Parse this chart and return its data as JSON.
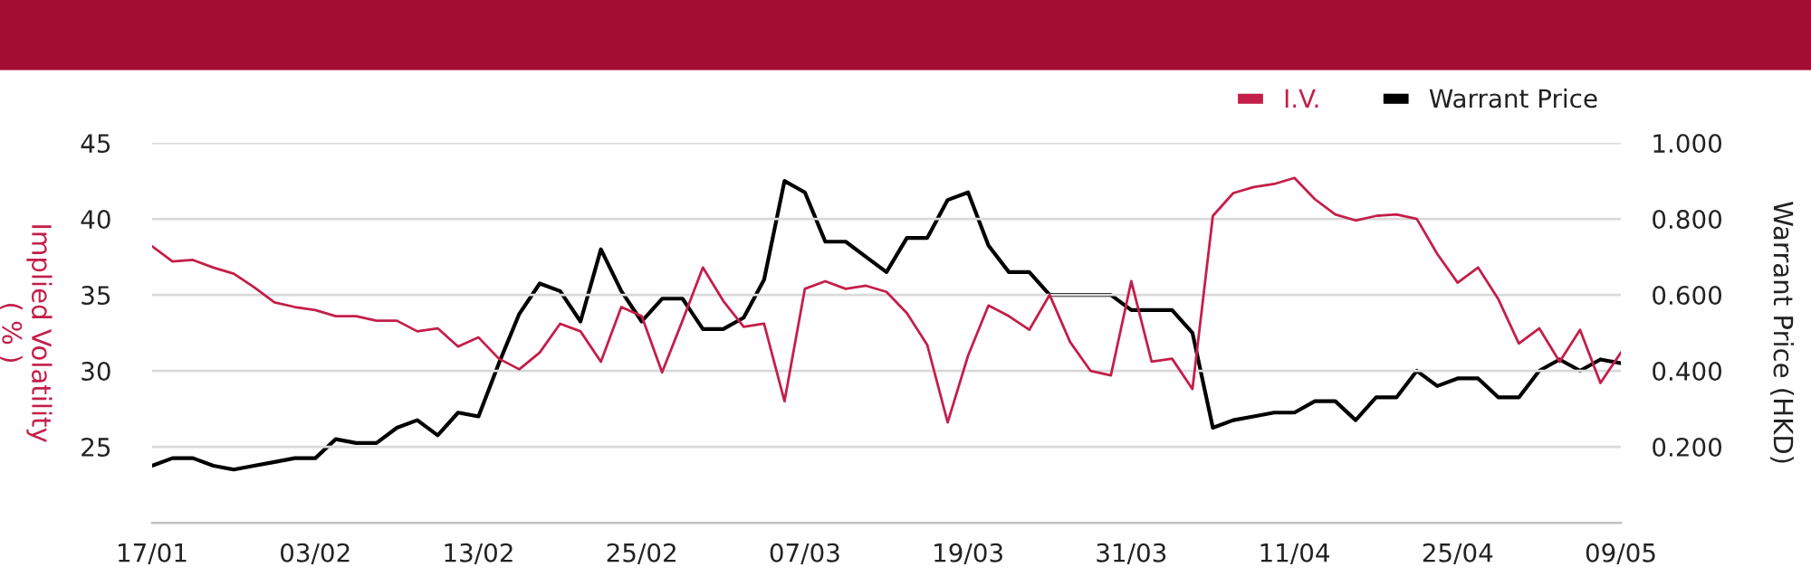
{
  "chart_data": {
    "type": "line",
    "categories": [
      "17/01",
      null,
      null,
      null,
      null,
      null,
      null,
      null,
      "03/02",
      null,
      null,
      null,
      null,
      null,
      null,
      null,
      "13/02",
      null,
      null,
      null,
      null,
      null,
      null,
      null,
      "25/02",
      null,
      null,
      null,
      null,
      null,
      null,
      null,
      "07/03",
      null,
      null,
      null,
      null,
      null,
      null,
      null,
      "19/03",
      null,
      null,
      null,
      null,
      null,
      null,
      null,
      "31/03",
      null,
      null,
      null,
      null,
      null,
      null,
      null,
      "11/04",
      null,
      null,
      null,
      null,
      null,
      null,
      null,
      "25/04",
      null,
      null,
      null,
      null,
      null,
      null,
      null,
      "09/05"
    ],
    "series": [
      {
        "name": "I.V.",
        "color": "#c41e4a",
        "values": [
          38.2,
          37.2,
          37.3,
          36.8,
          36.4,
          35.5,
          34.5,
          34.2,
          34.0,
          33.6,
          33.6,
          33.3,
          33.3,
          32.6,
          32.8,
          31.6,
          32.2,
          30.8,
          30.1,
          31.2,
          33.1,
          32.6,
          30.6,
          34.2,
          33.6,
          29.9,
          33.3,
          36.8,
          34.6,
          32.9,
          33.1,
          28.0,
          35.4,
          35.9,
          35.4,
          35.6,
          35.2,
          33.8,
          31.7,
          26.6,
          31.0,
          34.3,
          33.6,
          32.7,
          35.0,
          31.9,
          30.0,
          29.7,
          35.9,
          30.6,
          30.8,
          28.8,
          40.2,
          41.7,
          42.1,
          42.3,
          42.7,
          41.3,
          40.3,
          39.9,
          40.2,
          40.3,
          40.0,
          37.7,
          35.8,
          36.8,
          34.7,
          31.8,
          32.8,
          30.6,
          32.7,
          29.2,
          31.2
        ]
      },
      {
        "name": "Warrant Price",
        "color": "#000000",
        "axis": "y2",
        "values": [
          0.15,
          0.17,
          0.17,
          0.15,
          0.14,
          0.15,
          0.16,
          0.17,
          0.17,
          0.22,
          0.21,
          0.21,
          0.25,
          0.27,
          0.23,
          0.29,
          0.28,
          0.42,
          0.55,
          0.63,
          0.61,
          0.53,
          0.72,
          0.61,
          0.53,
          0.59,
          0.59,
          0.51,
          0.51,
          0.54,
          0.64,
          0.9,
          0.87,
          0.74,
          0.74,
          0.7,
          0.66,
          0.75,
          0.75,
          0.85,
          0.87,
          0.73,
          0.66,
          0.66,
          0.6,
          0.6,
          0.6,
          0.6,
          0.56,
          0.56,
          0.56,
          0.5,
          0.25,
          0.27,
          0.28,
          0.29,
          0.29,
          0.32,
          0.32,
          0.27,
          0.33,
          0.33,
          0.4,
          0.36,
          0.38,
          0.38,
          0.33,
          0.33,
          0.4,
          0.43,
          0.4,
          0.43,
          0.42
        ]
      }
    ],
    "ylabel": "Implied Volatility\n( % )",
    "y2label": "Warrant Price (HKD)",
    "ylim": [
      20,
      45
    ],
    "yticks": [
      25,
      30,
      35,
      40,
      45
    ],
    "y2lim": [
      0,
      1
    ],
    "y2ticks": [
      {
        "value": 0.2,
        "label": "0.200"
      },
      {
        "value": 0.4,
        "label": "0.400"
      },
      {
        "value": 0.6,
        "label": "0.600"
      },
      {
        "value": 0.8,
        "label": "0.800"
      },
      {
        "value": 1,
        "label": "1.000"
      }
    ],
    "grid": "y",
    "legend": "top right",
    "marker": "none",
    "line_style": "solid"
  }
}
